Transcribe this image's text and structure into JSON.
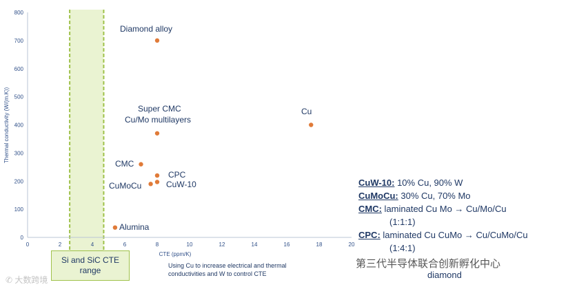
{
  "chart_data": {
    "type": "scatter",
    "xlabel": "CTE (ppm/K)",
    "ylabel": "Thermal conductivity (W/(m.K))",
    "xlim": [
      0,
      20
    ],
    "ylim": [
      0,
      800
    ],
    "xticks": [
      0,
      2,
      4,
      6,
      8,
      10,
      12,
      14,
      16,
      18,
      20
    ],
    "yticks": [
      0,
      100,
      200,
      300,
      400,
      500,
      600,
      700,
      800
    ],
    "marker_color": "#e07b39",
    "band_color": "#9fc14a",
    "band_range": [
      2.6,
      4.7
    ],
    "points": [
      {
        "name": "Diamond alloy",
        "x": 8.0,
        "y": 700
      },
      {
        "name": "Super CMC Cu/Mo multilayers",
        "x": 8.0,
        "y": 370
      },
      {
        "name": "Cu",
        "x": 17.5,
        "y": 400
      },
      {
        "name": "CMC",
        "x": 7.0,
        "y": 260
      },
      {
        "name": "CPC",
        "x": 8.0,
        "y": 220
      },
      {
        "name": "CuW-10",
        "x": 8.0,
        "y": 197
      },
      {
        "name": "CuMoCu",
        "x": 7.6,
        "y": 190
      },
      {
        "name": "Alumina",
        "x": 5.4,
        "y": 35
      }
    ],
    "labels": {
      "diamond": "Diamond alloy",
      "super_line1": "Super CMC",
      "super_line2": "Cu/Mo multilayers",
      "cu": "Cu",
      "cmc": "CMC",
      "cpc": "CPC",
      "cumocu": "CuMoCu",
      "cuw": "CuW-10",
      "alumina": "Alumina"
    }
  },
  "band_label": {
    "line1": "Si and SiC CTE",
    "line2": "range"
  },
  "note": "Using Cu to increase electrical and thermal conductivities and W to control CTE",
  "definitions": [
    {
      "term": "CuW-10:",
      "text": " 10% Cu, 90% W"
    },
    {
      "term": "CuMoCu:",
      "text": " 30% Cu, 70% Mo"
    },
    {
      "term": "CMC:",
      "text": " laminated Cu Mo → Cu/Mo/Cu",
      "cont": "(1:1:1)"
    },
    {
      "term": "CPC:",
      "text": " laminated Cu CuMo → Cu/CuMo/Cu",
      "cont": "(1:4:1)"
    }
  ],
  "watermarks": {
    "left": "✆ 大数跨境",
    "right": "第三代半导体联合创新孵化中心",
    "tail": "diamond"
  }
}
